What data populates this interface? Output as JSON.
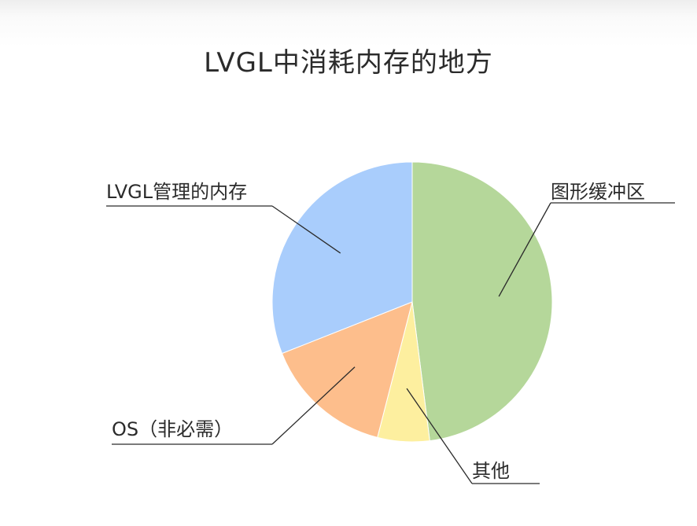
{
  "chart_data": {
    "type": "pie",
    "title": "LVGL中消耗内存的地方",
    "slices": [
      {
        "label": "图形缓冲区",
        "value": 48,
        "color": "#b5d79a"
      },
      {
        "label": "其他",
        "value": 6,
        "color": "#fdef9f"
      },
      {
        "label": "OS（非必需）",
        "value": 15,
        "color": "#fdbe8c"
      },
      {
        "label": "LVGL管理的内存",
        "value": 31,
        "color": "#a9cdfc"
      }
    ],
    "start_angle_deg": 0,
    "direction": "clockwise",
    "legend": "none"
  }
}
